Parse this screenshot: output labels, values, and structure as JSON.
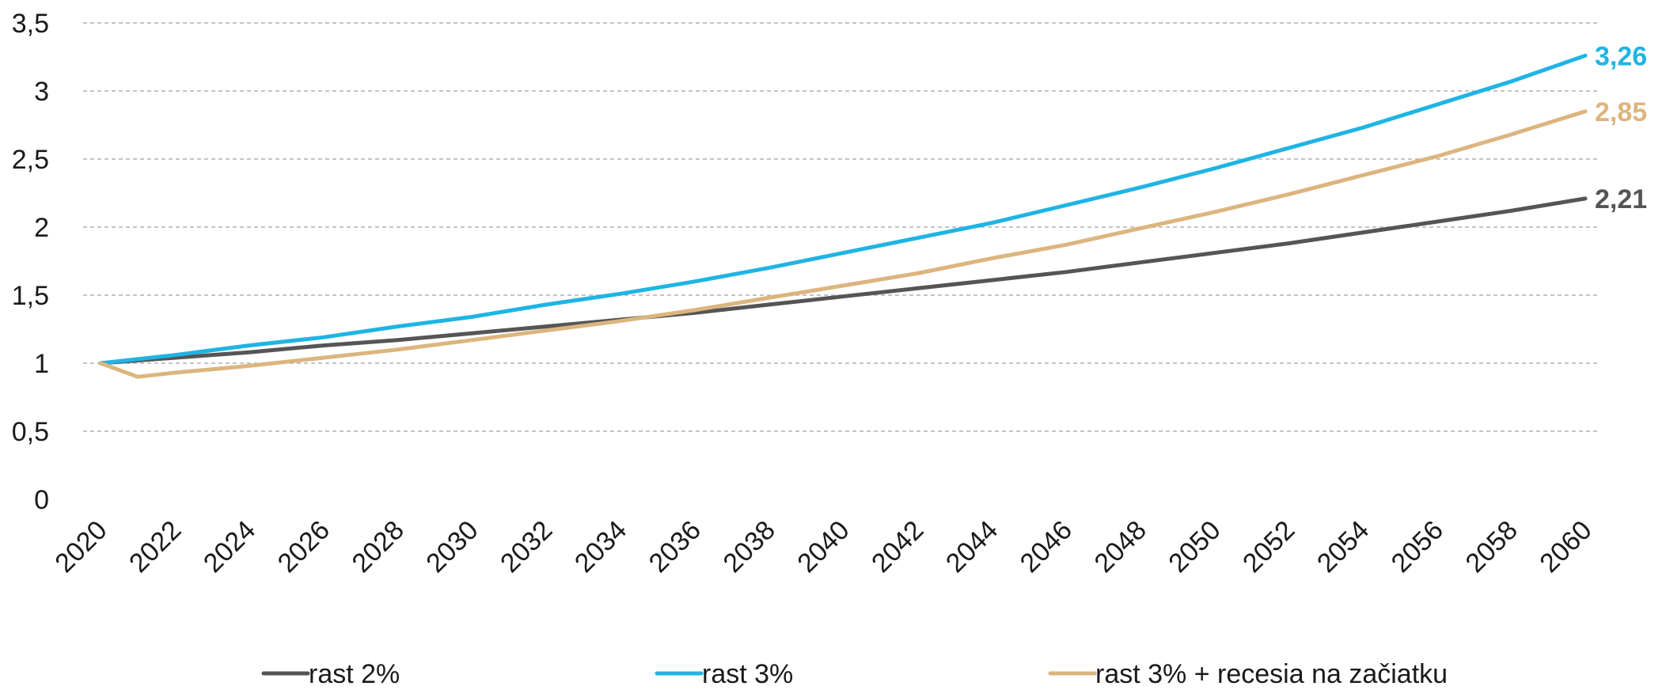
{
  "chart_data": {
    "type": "line",
    "title": "",
    "xlabel": "",
    "ylabel": "",
    "ylim": [
      0,
      3.5
    ],
    "y_ticks": [
      "0",
      "0,5",
      "1",
      "1,5",
      "2",
      "2,5",
      "3",
      "3,5"
    ],
    "x_ticks": [
      "2020",
      "2022",
      "2024",
      "2026",
      "2028",
      "2030",
      "2032",
      "2034",
      "2036",
      "2038",
      "2040",
      "2042",
      "2044",
      "2046",
      "2048",
      "2050",
      "2052",
      "2054",
      "2056",
      "2058",
      "2060"
    ],
    "grid": "horizontal dashed",
    "legend_position": "bottom",
    "x": [
      2020,
      2022,
      2024,
      2026,
      2028,
      2030,
      2032,
      2034,
      2036,
      2038,
      2040,
      2042,
      2044,
      2046,
      2048,
      2050,
      2052,
      2054,
      2056,
      2058,
      2060
    ],
    "series": [
      {
        "name": "rast 2%",
        "color": "#555555",
        "values": [
          1.0,
          1.04,
          1.08,
          1.13,
          1.17,
          1.22,
          1.27,
          1.32,
          1.37,
          1.43,
          1.49,
          1.55,
          1.61,
          1.67,
          1.74,
          1.81,
          1.88,
          1.96,
          2.04,
          2.12,
          2.21
        ],
        "end_label": "2,21"
      },
      {
        "name": "rast 3%",
        "color": "#1fb4e4",
        "values": [
          1.0,
          1.06,
          1.13,
          1.19,
          1.27,
          1.34,
          1.43,
          1.51,
          1.6,
          1.7,
          1.81,
          1.92,
          2.03,
          2.16,
          2.29,
          2.43,
          2.58,
          2.73,
          2.9,
          3.07,
          3.26
        ],
        "end_label": "3,26"
      },
      {
        "name": "rast 3% + recesia na začiatku",
        "color": "#dcb57e",
        "x": [
          2020,
          2021,
          2022,
          2024,
          2026,
          2028,
          2030,
          2032,
          2034,
          2036,
          2038,
          2040,
          2042,
          2044,
          2046,
          2048,
          2050,
          2052,
          2054,
          2056,
          2058,
          2060
        ],
        "values": [
          1.0,
          0.9,
          0.93,
          0.98,
          1.04,
          1.1,
          1.17,
          1.24,
          1.31,
          1.39,
          1.48,
          1.57,
          1.66,
          1.77,
          1.87,
          1.99,
          2.11,
          2.24,
          2.38,
          2.52,
          2.68,
          2.85
        ],
        "end_label": "2,85"
      }
    ]
  }
}
